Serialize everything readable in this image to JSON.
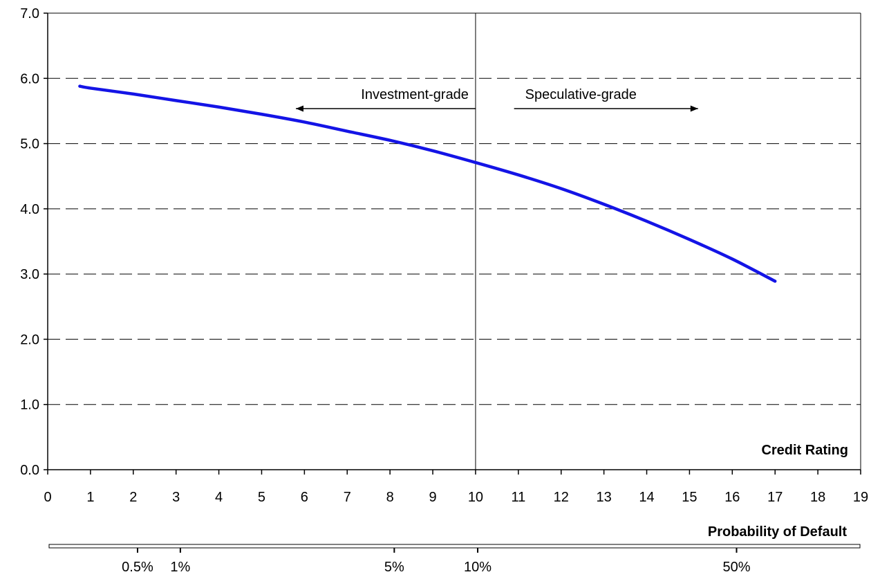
{
  "chart_data": {
    "type": "line",
    "title": "",
    "xlabel": "Credit Rating",
    "ylabel": "",
    "xlim": [
      0,
      19
    ],
    "ylim": [
      0,
      7
    ],
    "x_ticks": [
      "0",
      "1",
      "2",
      "3",
      "4",
      "5",
      "6",
      "7",
      "8",
      "9",
      "10",
      "11",
      "12",
      "13",
      "14",
      "15",
      "16",
      "17",
      "18",
      "19"
    ],
    "y_ticks": [
      "0.0",
      "1.0",
      "2.0",
      "3.0",
      "4.0",
      "5.0",
      "6.0",
      "7.0"
    ],
    "grid": "horizontal-dashed",
    "legend": "none",
    "series": [
      {
        "color": "#1414e6",
        "x": [
          0.75,
          1,
          2,
          3,
          4,
          5,
          6,
          7,
          8,
          9,
          10,
          11,
          12,
          13,
          14,
          15,
          16,
          17
        ],
        "y": [
          5.88,
          5.85,
          5.76,
          5.66,
          5.56,
          5.45,
          5.33,
          5.19,
          5.05,
          4.89,
          4.71,
          4.52,
          4.31,
          4.07,
          3.81,
          3.53,
          3.23,
          2.89
        ]
      }
    ],
    "divider": {
      "x": 10
    },
    "annotations": {
      "investment": {
        "label": "Investment-grade",
        "arrow_from": 10,
        "arrow_to": 5.8
      },
      "speculative": {
        "label": "Speculative-grade",
        "arrow_from": 10.9,
        "arrow_to": 15.2
      }
    },
    "secondary_axis": {
      "title": "Probability of Default",
      "ticks": [
        {
          "label": "0.5%",
          "rating": 2.1
        },
        {
          "label": "1%",
          "rating": 3.1
        },
        {
          "label": "5%",
          "rating": 8.1
        },
        {
          "label": "10%",
          "rating": 10.05
        },
        {
          "label": "50%",
          "rating": 16.1
        }
      ]
    }
  }
}
